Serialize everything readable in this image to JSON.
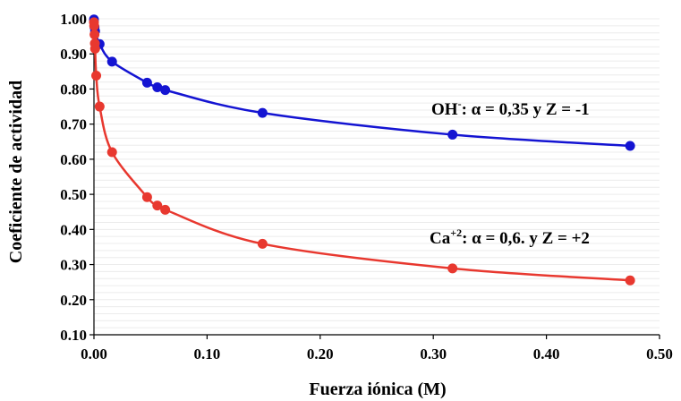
{
  "chart_data": {
    "type": "scatter",
    "xlabel": "Fuerza iónica (M)",
    "ylabel": "Coeficiente de actividad",
    "xlim": [
      0.0,
      0.5
    ],
    "ylim": [
      0.1,
      1.0
    ],
    "x_ticks": [
      "0.00",
      "0.10",
      "0.20",
      "0.30",
      "0.40",
      "0.50"
    ],
    "y_ticks": [
      "0.10",
      "0.20",
      "0.30",
      "0.40",
      "0.50",
      "0.60",
      "0.70",
      "0.80",
      "0.90",
      "1.00"
    ],
    "grid": true,
    "series": [
      {
        "color": "#1414d2",
        "points": [
          [
            0.0,
            0.998
          ],
          [
            0.0005,
            0.976
          ],
          [
            0.001,
            0.965
          ],
          [
            0.005,
            0.928
          ],
          [
            0.016,
            0.878
          ],
          [
            0.047,
            0.818
          ],
          [
            0.056,
            0.805
          ],
          [
            0.063,
            0.797
          ],
          [
            0.149,
            0.732
          ],
          [
            0.317,
            0.67
          ],
          [
            0.474,
            0.638
          ]
        ]
      },
      {
        "color": "#e8382f",
        "points": [
          [
            0.0,
            0.99
          ],
          [
            0.0002,
            0.98
          ],
          [
            0.0005,
            0.955
          ],
          [
            0.0008,
            0.93
          ],
          [
            0.001,
            0.915
          ],
          [
            0.002,
            0.838
          ],
          [
            0.005,
            0.75
          ],
          [
            0.016,
            0.62
          ],
          [
            0.047,
            0.492
          ],
          [
            0.056,
            0.468
          ],
          [
            0.063,
            0.456
          ],
          [
            0.149,
            0.359
          ],
          [
            0.317,
            0.289
          ],
          [
            0.474,
            0.255
          ]
        ]
      }
    ],
    "annotations": [
      {
        "base": "OH",
        "sup": "-",
        "rest": ": α = 0,35 y  Z = -1"
      },
      {
        "base": "Ca",
        "sup": "+2",
        "rest": ": α = 0,6. y Z = +2"
      }
    ]
  }
}
